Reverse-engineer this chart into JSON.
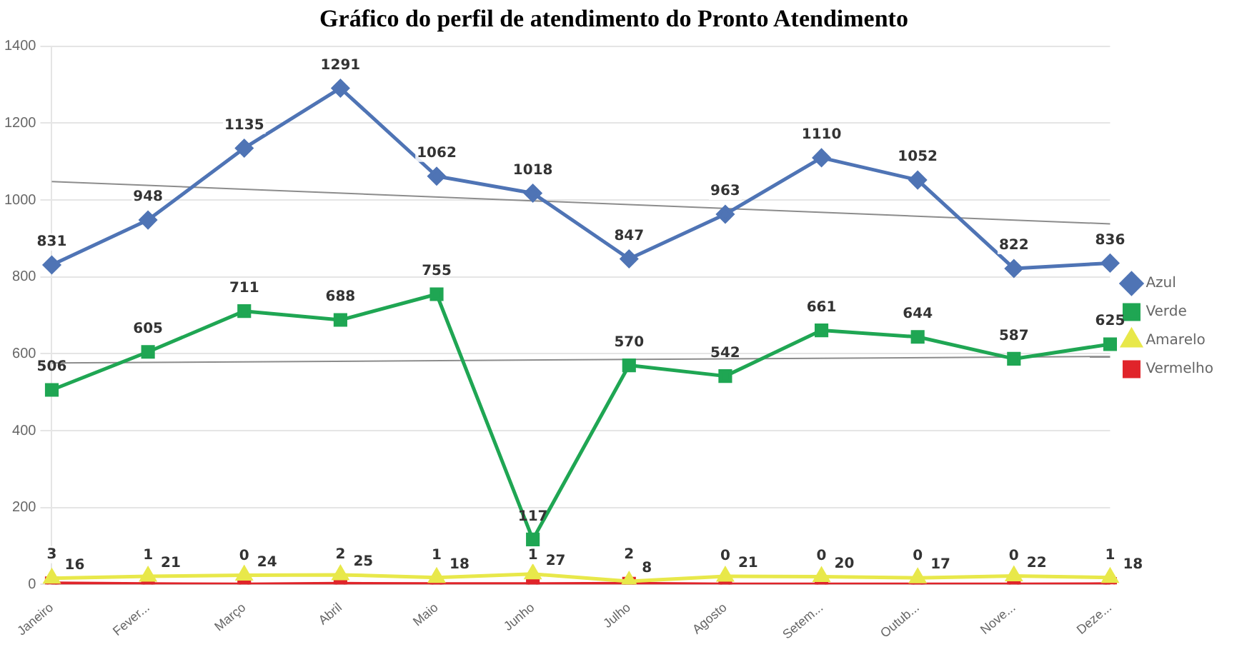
{
  "chart_data": {
    "type": "line",
    "title": "Gráfico do perfil de atendimento do Pronto Atendimento",
    "categories": [
      "Janeiro",
      "Fever...",
      "Março",
      "Abril",
      "Maio",
      "Junho",
      "Julho",
      "Agosto",
      "Setem...",
      "Outub...",
      "Nove...",
      "Deze..."
    ],
    "series": [
      {
        "name": "Azul",
        "color": "#4f74b5",
        "marker": "diamond",
        "values": [
          831,
          948,
          1135,
          1291,
          1062,
          1018,
          847,
          963,
          1110,
          1052,
          822,
          836
        ]
      },
      {
        "name": "Verde",
        "color": "#1fa653",
        "marker": "square",
        "values": [
          506,
          605,
          711,
          688,
          755,
          117,
          570,
          542,
          661,
          644,
          587,
          625
        ]
      },
      {
        "name": "Amarelo",
        "color": "#e8e84a",
        "marker": "triangle",
        "values": [
          16,
          21,
          24,
          25,
          18,
          27,
          8,
          21,
          20,
          17,
          22,
          18
        ]
      },
      {
        "name": "Vermelho",
        "color": "#e0242a",
        "marker": "square",
        "values": [
          3,
          1,
          0,
          2,
          1,
          1,
          2,
          0,
          0,
          0,
          0,
          1
        ]
      },
      {
        "type": "line",
        "color": "#8c8c8c",
        "marker": "none",
        "x": [
          "Janeiro",
          "Deze..."
        ],
        "values": [
          1048,
          938
        ],
        "value_labels": [
          null,
          null
        ]
      },
      {
        "type": "line",
        "color": "#8c8c8c",
        "marker": "none",
        "x": [
          "Janeiro",
          "Deze..."
        ],
        "values": [
          576,
          593
        ],
        "value_labels": [
          null,
          null
        ]
      }
    ],
    "ylim": [
      0,
      1400
    ],
    "yticks": [
      0,
      200,
      400,
      600,
      800,
      1000,
      1200,
      1400
    ],
    "grid": "y",
    "legend": "right",
    "data_labels": true
  }
}
